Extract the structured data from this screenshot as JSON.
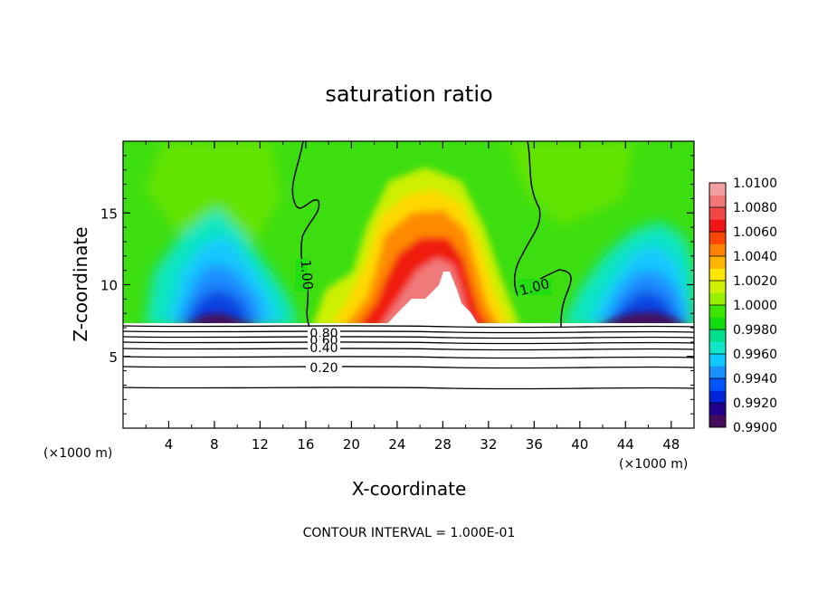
{
  "chart_data": {
    "type": "heatmap",
    "title": "saturation ratio",
    "xlabel": "X-coordinate",
    "ylabel": "Z-coordinate",
    "x_unit_left": "(×1000 m)",
    "x_unit_right": "(×1000 m)",
    "footer": "CONTOUR INTERVAL = 1.000E-01",
    "xlim": [
      0,
      50
    ],
    "ylim": [
      0,
      20
    ],
    "x_ticks": [
      4,
      8,
      12,
      16,
      20,
      24,
      28,
      32,
      36,
      40,
      44,
      48
    ],
    "y_ticks": [
      5,
      10,
      15
    ],
    "colorbar": {
      "range": [
        0.99,
        1.01
      ],
      "levels": [
        "1.0100",
        "1.0080",
        "1.0060",
        "1.0040",
        "1.0020",
        "1.0000",
        "0.9980",
        "0.9960",
        "0.9940",
        "0.9920",
        "0.9900"
      ],
      "colors": [
        "#440d5c",
        "#22008c",
        "#0022d8",
        "#0055ff",
        "#1a90ff",
        "#10c8ff",
        "#10e6c8",
        "#00e08c",
        "#10dc10",
        "#3ce600",
        "#96f000",
        "#ccf000",
        "#ffe600",
        "#ffb400",
        "#ff8200",
        "#ff4600",
        "#f01414",
        "#f04646",
        "#f07878",
        "#f4a0a0"
      ]
    },
    "contour_labels": [
      {
        "text": "1.00",
        "x": 15.4,
        "z": 10.5
      },
      {
        "text": "1.00",
        "x": 35.3,
        "z": 9.8
      },
      {
        "text": "0.80",
        "x": 17.7,
        "z": 6.9
      },
      {
        "text": "0.60",
        "x": 17.7,
        "z": 6.3
      },
      {
        "text": "0.40",
        "x": 17.7,
        "z": 5.6
      },
      {
        "text": "0.20",
        "x": 17.7,
        "z": 4.3
      }
    ],
    "contour_lines_z": [
      2.8,
      4.3,
      4.95,
      5.55,
      6.0,
      6.4,
      6.75,
      7.1
    ]
  }
}
